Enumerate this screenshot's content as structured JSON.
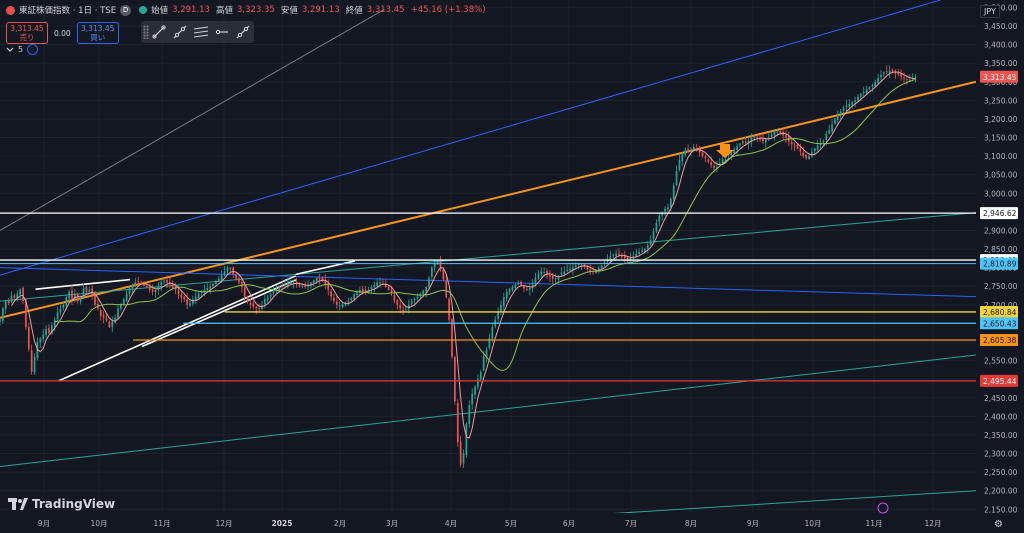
{
  "header": {
    "title": "東証株価指数 · 1日 · TSE",
    "d_badge": "D",
    "open_label": "始値",
    "open_value": "3,291.13",
    "high_label": "高値",
    "high_value": "3,323.35",
    "low_label": "安値",
    "low_value": "3,291.13",
    "close_label": "終値",
    "close_value": "3,313.45",
    "change": "+45.16 (+1.38%)"
  },
  "trade": {
    "sell_price": "3,313.45",
    "sell_label": "売り",
    "spread": "0.00",
    "buy_price": "3,313.45",
    "buy_label": "買い"
  },
  "collapse_label": "5",
  "currency": "JPY",
  "logo_text": "TradingView",
  "toolbar": {
    "icons": [
      "trend-line-icon",
      "ray-icon",
      "parallel-channel-icon",
      "horizontal-ray-icon",
      "extended-line-icon"
    ]
  },
  "colors": {
    "background": "#131722",
    "up": "#26a69a",
    "down": "#ef5350",
    "orange": "#f7931a",
    "blue": "#2962ff",
    "teal": "#26a69a",
    "white": "#e0e3eb",
    "yellow": "#f5d33a",
    "red": "#e53935"
  },
  "chart_data": {
    "type": "candlestick",
    "title": "東証株価指数",
    "y_ticks": [
      "3,500.00",
      "3,450.00",
      "3,400.00",
      "3,350.00",
      "3,300.00",
      "3,250.00",
      "3,200.00",
      "3,150.00",
      "3,100.00",
      "3,050.00",
      "3,000.00",
      "2,950.00",
      "2,900.00",
      "2,850.00",
      "2,800.00",
      "2,750.00",
      "2,700.00",
      "2,650.00",
      "2,600.00",
      "2,550.00",
      "2,500.00",
      "2,450.00",
      "2,400.00",
      "2,350.00",
      "2,300.00",
      "2,250.00",
      "2,200.00",
      "2,150.00"
    ],
    "x_ticks": [
      "9月",
      "10月",
      "11月",
      "12月",
      "2025",
      "2月",
      "3月",
      "4月",
      "5月",
      "6月",
      "7月",
      "8月",
      "9月",
      "10月",
      "11月",
      "12月"
    ],
    "ylim": [
      2140,
      3520
    ],
    "x_index_range": [
      0,
      330
    ],
    "price_levels": [
      {
        "label": "3,313.45",
        "value": 3313.45,
        "color": "#ef5350"
      },
      {
        "label": "2,946.62",
        "value": 2946.62,
        "color": "#ffffff"
      },
      {
        "label": "2,820.40",
        "value": 2820.4,
        "color": "#ffffff"
      },
      {
        "label": "2,810.89",
        "value": 2810.89,
        "color": "#4fc3f7"
      },
      {
        "label": "2,680.84",
        "value": 2680.84,
        "color": "#f5d33a"
      },
      {
        "label": "2,650.43",
        "value": 2650.43,
        "color": "#4fc3f7"
      },
      {
        "label": "2,605.38",
        "value": 2605.38,
        "color": "#f7931a"
      },
      {
        "label": "2,495.44",
        "value": 2495.44,
        "color": "#e53935"
      }
    ],
    "trend_lines": [
      {
        "name": "orange-channel",
        "color": "#f7931a",
        "from": [
          0,
          2665
        ],
        "to": [
          330,
          3300
        ],
        "width": 2
      },
      {
        "name": "blue-upper",
        "color": "#2962ff",
        "from": [
          0,
          2780
        ],
        "to": [
          318,
          3520
        ],
        "width": 1
      },
      {
        "name": "teal-mid",
        "color": "#26a69a",
        "from": [
          0,
          2710
        ],
        "to": [
          330,
          2948
        ],
        "width": 1
      },
      {
        "name": "teal-lower",
        "color": "#26a69a",
        "from": [
          0,
          2265
        ],
        "to": [
          330,
          2565
        ],
        "width": 1
      },
      {
        "name": "teal-bottom",
        "color": "#26a69a",
        "from": [
          200,
          2135
        ],
        "to": [
          330,
          2200
        ],
        "width": 1
      },
      {
        "name": "blue-descending",
        "color": "#2962ff",
        "from": [
          0,
          2800
        ],
        "to": [
          330,
          2722
        ],
        "width": 1
      },
      {
        "name": "gray-upper",
        "color": "#787b86",
        "from": [
          0,
          2900
        ],
        "to": [
          130,
          3495
        ],
        "width": 1
      }
    ],
    "white_lines": [
      {
        "from": [
          12,
          2742
        ],
        "to": [
          44,
          2768
        ]
      },
      {
        "from": [
          20,
          2496
        ],
        "to": [
          100,
          2778
        ]
      },
      {
        "from": [
          48,
          2588
        ],
        "to": [
          100,
          2767
        ]
      },
      {
        "from": [
          100,
          2782
        ],
        "to": [
          120,
          2818
        ]
      }
    ],
    "close_series": [
      2660,
      2690,
      2710,
      2705,
      2725,
      2720,
      2730,
      2742,
      2710,
      2640,
      2580,
      2520,
      2560,
      2600,
      2610,
      2620,
      2635,
      2625,
      2645,
      2660,
      2680,
      2690,
      2700,
      2720,
      2735,
      2715,
      2730,
      2710,
      2720,
      2745,
      2735,
      2740,
      2728,
      2700,
      2690,
      2670,
      2665,
      2658,
      2640,
      2655,
      2665,
      2690,
      2700,
      2715,
      2730,
      2745,
      2755,
      2760,
      2760,
      2758,
      2752,
      2748,
      2740,
      2735,
      2740,
      2752,
      2760,
      2765,
      2760,
      2755,
      2745,
      2740,
      2728,
      2720,
      2715,
      2700,
      2705,
      2715,
      2722,
      2730,
      2735,
      2740,
      2745,
      2750,
      2756,
      2762,
      2770,
      2780,
      2790,
      2800,
      2798,
      2782,
      2770,
      2760,
      2748,
      2722,
      2708,
      2700,
      2695,
      2690,
      2690,
      2700,
      2715,
      2720,
      2730,
      2738,
      2742,
      2748,
      2750,
      2755,
      2758,
      2761,
      2760,
      2756,
      2750,
      2752,
      2748,
      2755,
      2760,
      2766,
      2772,
      2770,
      2764,
      2756,
      2740,
      2722,
      2710,
      2700,
      2698,
      2702,
      2706,
      2710,
      2718,
      2728,
      2736,
      2740,
      2736,
      2733,
      2740,
      2748,
      2754,
      2760,
      2760,
      2756,
      2748,
      2740,
      2730,
      2712,
      2700,
      2690,
      2686,
      2690,
      2700,
      2710,
      2716,
      2722,
      2730,
      2738,
      2748,
      2772,
      2800,
      2812,
      2815,
      2800,
      2768,
      2720,
      2660,
      2560,
      2440,
      2330,
      2270,
      2300,
      2380,
      2430,
      2460,
      2480,
      2500,
      2520,
      2560,
      2580,
      2610,
      2640,
      2660,
      2680,
      2700,
      2720,
      2735,
      2742,
      2748,
      2755,
      2760,
      2752,
      2744,
      2740,
      2745,
      2760,
      2772,
      2785,
      2790,
      2788,
      2780,
      2776,
      2770,
      2772,
      2778,
      2786,
      2790,
      2794,
      2796,
      2800,
      2806,
      2810,
      2808,
      2802,
      2795,
      2790,
      2788,
      2792,
      2798,
      2806,
      2815,
      2822,
      2830,
      2835,
      2838,
      2834,
      2830,
      2826,
      2822,
      2826,
      2832,
      2838,
      2842,
      2846,
      2850,
      2860,
      2875,
      2898,
      2920,
      2940,
      2948,
      2958,
      2962,
      2985,
      3020,
      3060,
      3090,
      3108,
      3115,
      3112,
      3118,
      3124,
      3120,
      3110,
      3100,
      3094,
      3085,
      3076,
      3068,
      3072,
      3080,
      3092,
      3100,
      3105,
      3110,
      3118,
      3126,
      3134,
      3140,
      3136,
      3142,
      3150,
      3155,
      3150,
      3146,
      3140,
      3145,
      3150,
      3158,
      3165,
      3168,
      3162,
      3156,
      3150,
      3140,
      3132,
      3128,
      3120,
      3112,
      3100,
      3095,
      3100,
      3110,
      3120,
      3128,
      3134,
      3140,
      3160,
      3170,
      3185,
      3200,
      3210,
      3220,
      3230,
      3236,
      3240,
      3245,
      3250,
      3260,
      3268,
      3272,
      3280,
      3285,
      3290,
      3300,
      3310,
      3318,
      3325,
      3328,
      3330,
      3328,
      3322,
      3320,
      3315,
      3310,
      3306,
      3305,
      3310,
      3313
    ]
  }
}
